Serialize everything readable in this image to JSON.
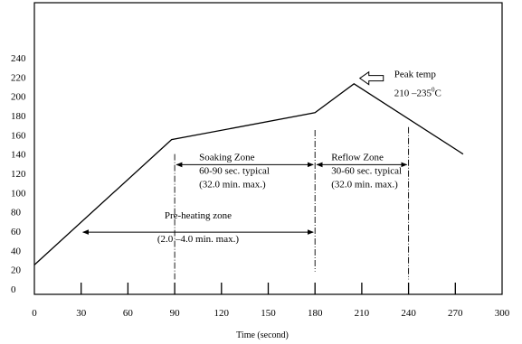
{
  "chart_data": {
    "type": "line",
    "title": "",
    "xlabel": "Time (second)",
    "ylabel": "",
    "xlim": [
      0,
      300
    ],
    "ylim": [
      0,
      240
    ],
    "x_ticks": [
      0,
      30,
      60,
      90,
      120,
      150,
      180,
      210,
      240,
      270,
      300
    ],
    "y_ticks": [
      0,
      20,
      40,
      60,
      80,
      100,
      120,
      140,
      160,
      180,
      200,
      220,
      240
    ],
    "grid": false,
    "legend": "none",
    "series": [
      {
        "points": [
          {
            "x": 0,
            "y": 25
          },
          {
            "x": 88,
            "y": 155
          },
          {
            "x": 180,
            "y": 183
          },
          {
            "x": 205,
            "y": 213
          },
          {
            "x": 275,
            "y": 140
          }
        ]
      }
    ],
    "markers": [
      {
        "x": 90,
        "y_from": 10,
        "y_to": 140
      },
      {
        "x": 180,
        "y_from": 18,
        "y_to": 165
      },
      {
        "x": 240,
        "y_from": 10,
        "y_to": 168
      }
    ],
    "annotations": {
      "soaking": {
        "x_from": 90,
        "x_to": 180,
        "arrow_y": 129,
        "lines": [
          "Soaking Zone",
          "60-90 sec. typical",
          "(32.0 min. max.)"
        ]
      },
      "reflow": {
        "x_from": 180,
        "x_to": 240,
        "arrow_y": 129,
        "lines": [
          "Reflow Zone",
          "30-60 sec. typical",
          "(32.0 min. max.)"
        ]
      },
      "preheat": {
        "x_from": 30,
        "x_to": 180,
        "arrow_y": 59,
        "lines": [
          "Pre-heating zone",
          "(2.0 –4.0 min. max.)"
        ]
      },
      "peak": {
        "x": 207,
        "y": 215,
        "label": "Peak temp",
        "range_text": "210 –235",
        "range_sup": "0",
        "range_unit": "C"
      }
    }
  }
}
